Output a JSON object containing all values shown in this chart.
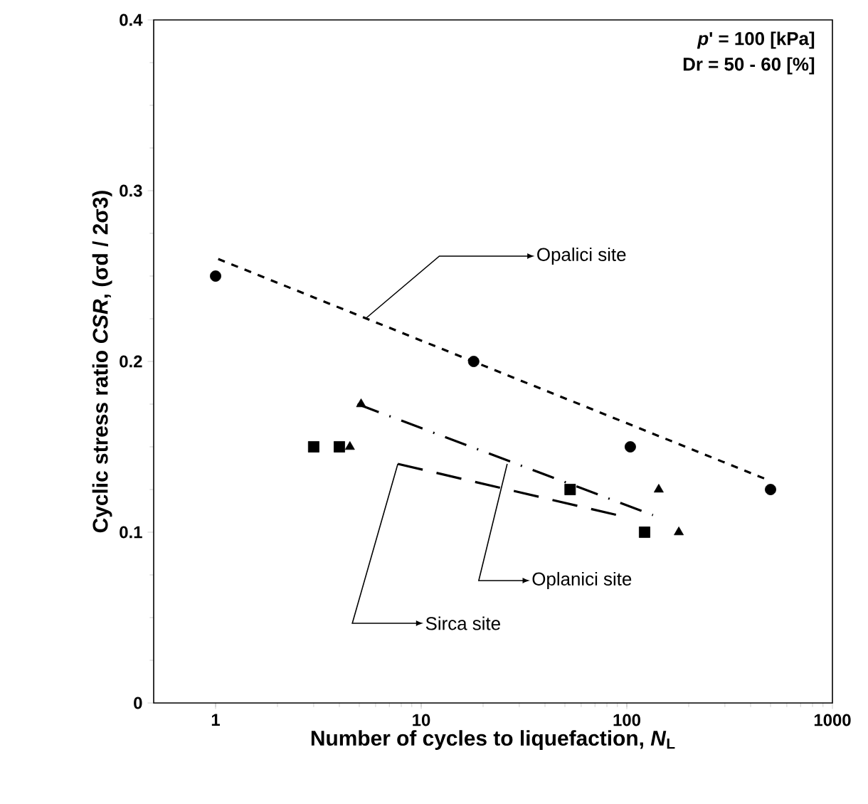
{
  "chart_data": {
    "type": "scatter",
    "xlabel": "Number of cycles to liquefaction, *N*$_{L}$",
    "ylabel": "Cyclic stress ratio *CSR*, (σd / 2σ3)",
    "log": "x",
    "xlim": [
      0.5,
      1000
    ],
    "xticks": [
      1,
      10,
      100,
      1000
    ],
    "ylim": [
      0,
      0.4
    ],
    "yticks": [
      0,
      0.1,
      0.2,
      0.3,
      0.4
    ],
    "series": [
      {
        "marker": "circle",
        "color": "#000000",
        "x": [
          1,
          18,
          104,
          500
        ],
        "values": [
          0.25,
          0.2,
          0.15,
          0.125
        ]
      },
      {
        "marker": "triangle",
        "color": "#000000",
        "x": [
          4.5,
          5.1,
          143,
          179
        ],
        "values": [
          0.15,
          0.175,
          0.125,
          0.1
        ]
      },
      {
        "marker": "square",
        "color": "#000000",
        "x": [
          3,
          4,
          53,
          122
        ],
        "values": [
          0.15,
          0.15,
          0.125,
          0.1
        ]
      },
      {
        "type": "line",
        "line_style": "dashed",
        "color": "#000000",
        "x": [
          1.03,
          500
        ],
        "values": [
          0.26,
          0.13
        ]
      },
      {
        "type": "line",
        "line_style": "dashed",
        "color": "#000000",
        "x": [
          4.9,
          134
        ],
        "values": [
          0.175,
          0.11
        ]
      },
      {
        "type": "line",
        "line_style": "dashed",
        "color": "#000000",
        "x": [
          7.7,
          90
        ],
        "values": [
          0.14,
          0.11
        ]
      }
    ],
    "annotations": [
      "*p*' = 100 [kPa]",
      "Dr = 50 - 60 [%]",
      {
        "text": "Opalici site",
        "x": 5.35,
        "y": 0.225
      },
      {
        "text": "Oplanici site",
        "x": 26.2,
        "y": 0.14
      },
      {
        "text": "Sirca site",
        "x": 7.7,
        "y": 0.14
      }
    ]
  }
}
